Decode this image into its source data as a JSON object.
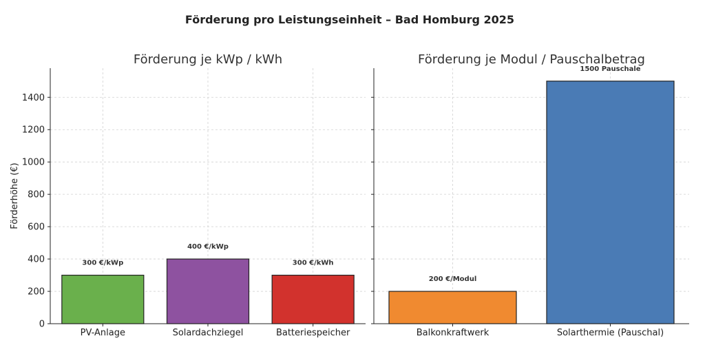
{
  "figure": {
    "title": "Förderung pro Leistungseinheit – Bad Homburg 2025"
  },
  "chart_data": [
    {
      "type": "bar",
      "title": "Förderung je kWp / kWh",
      "ylabel": "Förderhöhe (€)",
      "ylim": [
        0,
        1580
      ],
      "yticks": [
        0,
        200,
        400,
        600,
        800,
        1000,
        1200,
        1400
      ],
      "grid": true,
      "categories": [
        "PV-Anlage",
        "Solardachziegel",
        "Batteriespeicher"
      ],
      "values": [
        300,
        400,
        300
      ],
      "data_labels": [
        "300 €/kWp",
        "400 €/kWp",
        "300 €/kWh"
      ],
      "colors": [
        "#6ab04c",
        "#8e52a0",
        "#d2322d"
      ]
    },
    {
      "type": "bar",
      "title": "Förderung je Modul / Pauschalbetrag",
      "ylabel": "",
      "ylim": [
        0,
        1580
      ],
      "yticks": [
        0,
        200,
        400,
        600,
        800,
        1000,
        1200,
        1400
      ],
      "grid": true,
      "categories": [
        "Balkonkraftwerk",
        "Solarthermie (Pauschal)"
      ],
      "values": [
        200,
        1500
      ],
      "data_labels": [
        "200 €/Modul",
        "1500 Pauschale"
      ],
      "colors": [
        "#f08a30",
        "#4a7bb5"
      ]
    }
  ]
}
